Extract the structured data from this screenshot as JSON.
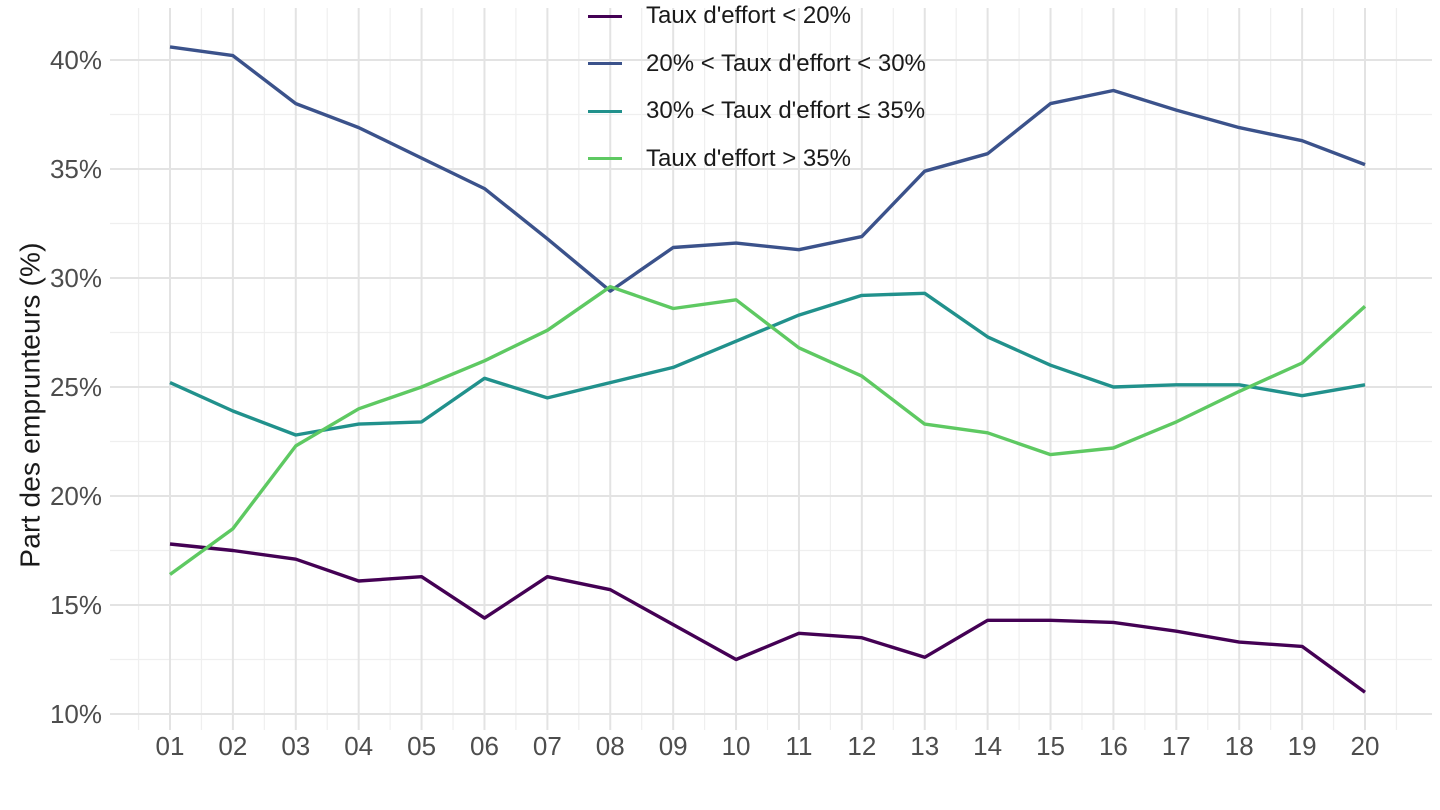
{
  "chart_data": {
    "type": "line",
    "title": "",
    "xlabel": "",
    "ylabel": "Part des emprunteurs (%)",
    "x_categories": [
      "01",
      "02",
      "03",
      "04",
      "05",
      "06",
      "07",
      "08",
      "09",
      "10",
      "11",
      "12",
      "13",
      "14",
      "15",
      "16",
      "17",
      "18",
      "19",
      "20"
    ],
    "y_ticks": [
      {
        "label": "10%",
        "value": 10
      },
      {
        "label": "15%",
        "value": 15
      },
      {
        "label": "20%",
        "value": 20
      },
      {
        "label": "25%",
        "value": 25
      },
      {
        "label": "30%",
        "value": 30
      },
      {
        "label": "35%",
        "value": 35
      },
      {
        "label": "40%",
        "value": 40
      }
    ],
    "y_minor_ticks": [
      12.5,
      17.5,
      22.5,
      27.5,
      32.5,
      37.5
    ],
    "ylim": [
      10,
      42
    ],
    "grid": "major+minor",
    "legend_position": "top-center-vertical",
    "colors": {
      "grid_major": "#e3e3e3",
      "grid_minor": "#efefef",
      "tick_text": "#4d4d4d",
      "label_text": "#1a1a1a",
      "background": "#ffffff"
    },
    "series": [
      {
        "name": "Taux d'effort < 20%",
        "color": "#440154",
        "values": [
          17.8,
          17.5,
          17.1,
          16.1,
          16.3,
          14.4,
          16.3,
          15.7,
          14.1,
          12.5,
          13.7,
          13.5,
          12.6,
          14.3,
          14.3,
          14.2,
          13.8,
          13.3,
          13.1,
          11.0
        ]
      },
      {
        "name": "20% < Taux d'effort < 30%",
        "color": "#3b528b",
        "values": [
          40.6,
          40.2,
          38.0,
          36.9,
          35.5,
          34.1,
          31.8,
          29.4,
          31.4,
          31.6,
          31.3,
          31.9,
          34.9,
          35.7,
          38.0,
          38.6,
          37.7,
          36.9,
          36.3,
          35.2
        ]
      },
      {
        "name": "30% < Taux d'effort ≤ 35%",
        "color": "#21918c",
        "values": [
          25.2,
          23.9,
          22.8,
          23.3,
          23.4,
          25.4,
          24.5,
          25.2,
          25.9,
          27.1,
          28.3,
          29.2,
          29.3,
          27.3,
          26.0,
          25.0,
          25.1,
          25.1,
          24.6,
          25.1
        ]
      },
      {
        "name": "Taux d'effort > 35%",
        "color": "#5ec962",
        "values": [
          16.4,
          18.5,
          22.3,
          24.0,
          25.0,
          26.2,
          27.6,
          29.6,
          28.6,
          29.0,
          26.8,
          25.5,
          23.3,
          22.9,
          21.9,
          22.2,
          23.4,
          24.8,
          26.1,
          28.7
        ]
      }
    ]
  }
}
